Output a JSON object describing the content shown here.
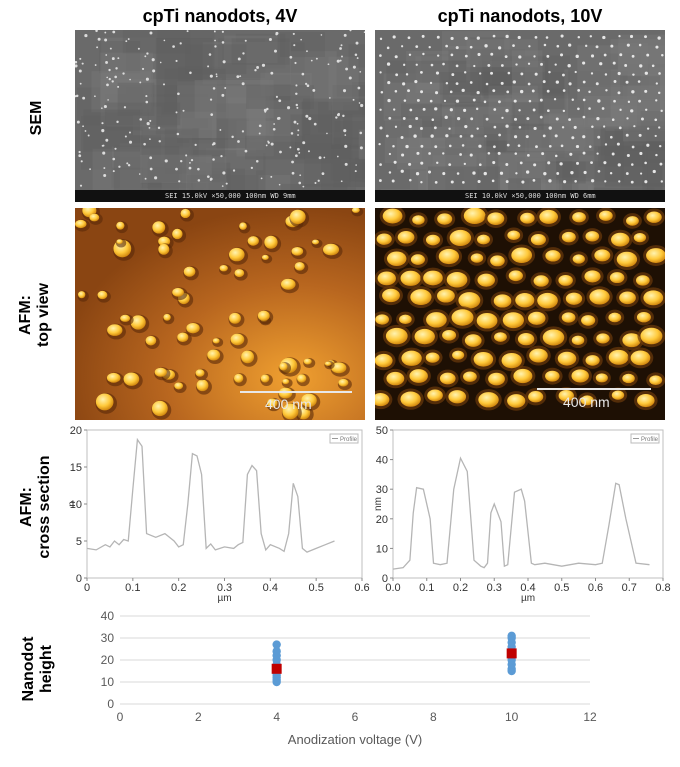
{
  "columns": [
    "cpTi nanodots, 4V",
    "cpTi nanodots, 10V"
  ],
  "rows": {
    "sem": "SEM",
    "afm_top_1": "AFM:",
    "afm_top_2": "top view",
    "afm_cross_1": "AFM:",
    "afm_cross_2": "cross section",
    "height_1": "Nanodot",
    "height_2": "height"
  },
  "sem_info": {
    "left": "SEI   15.0kV   ×50,000   100nm  WD 9mm",
    "right": "SEI   10.0kV   ×50,000   100nm  WD 6mm"
  },
  "afm_scale_label": "400 nm",
  "colors": {
    "afm_left_bg": "#b8661f",
    "afm_right_bg": "#1e1004",
    "dot": "#ffd24a",
    "trace": "#b5b5b5",
    "scatter_blue": "#5b9bd5",
    "scatter_red": "#c00000"
  },
  "chart_data": [
    {
      "type": "line",
      "title": "",
      "xlabel": "µm",
      "ylabel": "n",
      "xlim": [
        0,
        0.6
      ],
      "ylim": [
        0,
        20
      ],
      "x_ticks": [
        "0",
        "0.1",
        "0.2",
        "0.3",
        "0.4",
        "0.5",
        "0.6"
      ],
      "y_ticks": [
        "0",
        "5",
        "10",
        "15",
        "20"
      ],
      "legend": "Profile",
      "series": [
        {
          "x": [
            0.0,
            0.02,
            0.04,
            0.05,
            0.06,
            0.07,
            0.08,
            0.09,
            0.1,
            0.11,
            0.12,
            0.13,
            0.15,
            0.17,
            0.19,
            0.2,
            0.21,
            0.22,
            0.23,
            0.24,
            0.25,
            0.26,
            0.27,
            0.28,
            0.3,
            0.32,
            0.33,
            0.34,
            0.35,
            0.36,
            0.37,
            0.38,
            0.39,
            0.4,
            0.42,
            0.43,
            0.44,
            0.45,
            0.46,
            0.47,
            0.48,
            0.5,
            0.52,
            0.54
          ],
          "y": [
            4,
            3.8,
            4.5,
            4.2,
            5,
            4.5,
            5.2,
            5,
            12,
            18.7,
            17.8,
            6,
            5.5,
            6,
            5,
            4.2,
            4.5,
            10,
            16.8,
            16.5,
            14,
            4,
            4.6,
            3.8,
            4.2,
            4,
            4.5,
            4.8,
            14,
            15.2,
            14.5,
            6,
            3.8,
            4.5,
            4,
            3.6,
            6,
            12.8,
            11,
            4,
            3.5,
            4,
            4.5,
            5
          ]
        }
      ]
    },
    {
      "type": "line",
      "title": "",
      "xlabel": "µm",
      "ylabel": "nm",
      "xlim": [
        0,
        0.8
      ],
      "ylim": [
        0,
        50
      ],
      "x_ticks": [
        "0.0",
        "0.1",
        "0.2",
        "0.3",
        "0.4",
        "0.5",
        "0.6",
        "0.7",
        "0.8"
      ],
      "y_ticks": [
        "0",
        "10",
        "20",
        "30",
        "40",
        "50"
      ],
      "legend": "Profile",
      "series": [
        {
          "x": [
            0.0,
            0.03,
            0.05,
            0.06,
            0.07,
            0.09,
            0.11,
            0.12,
            0.14,
            0.16,
            0.18,
            0.2,
            0.22,
            0.24,
            0.26,
            0.27,
            0.28,
            0.29,
            0.3,
            0.32,
            0.33,
            0.34,
            0.36,
            0.38,
            0.39,
            0.41,
            0.42,
            0.45,
            0.5,
            0.55,
            0.6,
            0.62,
            0.64,
            0.66,
            0.67,
            0.69,
            0.72,
            0.76
          ],
          "y": [
            3,
            3.5,
            6,
            22,
            30.5,
            30,
            20,
            5,
            4.5,
            5,
            30,
            40.5,
            36,
            6,
            4,
            3.5,
            5,
            22,
            25,
            19,
            4,
            4.5,
            29,
            30,
            26,
            5,
            4.5,
            5,
            4,
            5,
            4.5,
            5,
            18,
            32,
            31.5,
            20,
            5,
            4.5
          ]
        }
      ]
    },
    {
      "type": "scatter",
      "title": "",
      "xlabel": "Anodization voltage (V)",
      "ylabel": "",
      "xlim": [
        0,
        12
      ],
      "ylim": [
        0,
        40
      ],
      "x_ticks": [
        "0",
        "2",
        "4",
        "6",
        "8",
        "10",
        "12"
      ],
      "y_ticks": [
        "0",
        "10",
        "20",
        "30",
        "40"
      ],
      "series": [
        {
          "x": [
            4,
            4,
            4,
            4,
            4,
            4,
            4,
            4,
            4,
            4,
            4,
            4,
            10,
            10,
            10,
            10,
            10,
            10,
            10,
            10,
            10,
            10
          ],
          "y": [
            10,
            11,
            12,
            13,
            14,
            15,
            17,
            18,
            20,
            22,
            24,
            27,
            15,
            16,
            18,
            20,
            22,
            24,
            26,
            28,
            30,
            31
          ]
        },
        {
          "x": [
            4,
            10
          ],
          "y": [
            16,
            23
          ]
        }
      ]
    }
  ]
}
